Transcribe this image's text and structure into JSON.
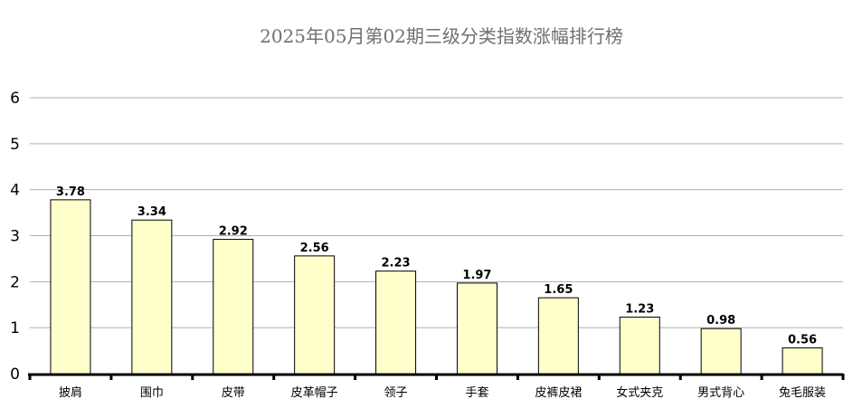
{
  "chart_data": {
    "type": "bar",
    "title": "2025年05月第02期三级分类指数涨幅排行榜",
    "categories": [
      "披肩",
      "围巾",
      "皮带",
      "皮革帽子",
      "领子",
      "手套",
      "皮裤皮裙",
      "女式夹克",
      "男式背心",
      "兔毛服装"
    ],
    "values": [
      3.78,
      3.34,
      2.92,
      2.56,
      2.23,
      1.97,
      1.65,
      1.23,
      0.98,
      0.56
    ],
    "data_labels": [
      "3.78",
      "3.34",
      "2.92",
      "2.56",
      "2.23",
      "1.97",
      "1.65",
      "1.23",
      "0.98",
      "0.56"
    ],
    "yticks": [
      "0",
      "1",
      "2",
      "3",
      "4",
      "5",
      "6"
    ],
    "ylim": [
      0,
      6
    ],
    "xlabel": "",
    "ylabel": "",
    "grid": true,
    "legend": "none",
    "colors": {
      "bar_fill": "#ffffcc",
      "bar_stroke": "#000000",
      "grid": "#b0b0b0",
      "axis": "#000000",
      "title": "#707070"
    }
  }
}
